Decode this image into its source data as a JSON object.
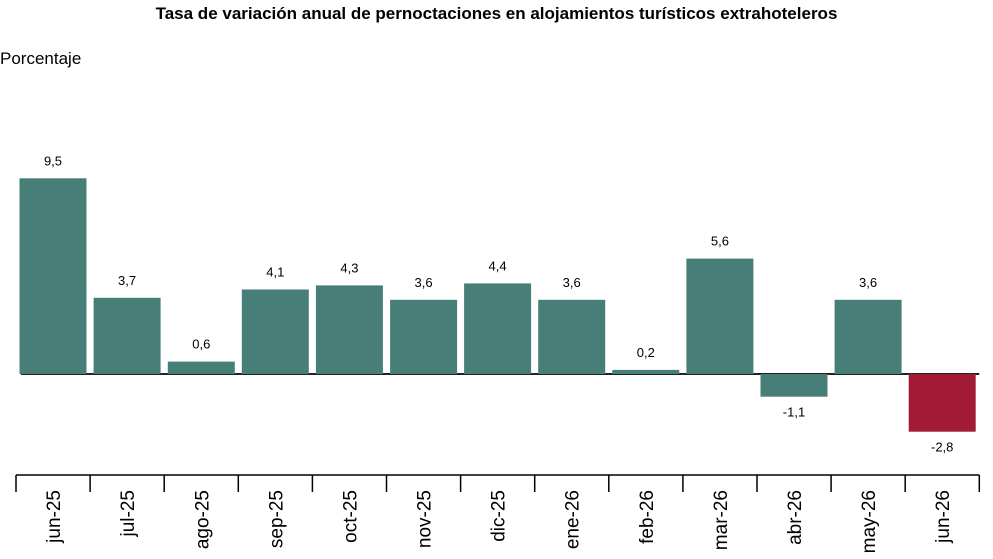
{
  "chart_data": {
    "type": "bar",
    "title": "Tasa de variación anual de pernoctaciones en alojamientos turísticos extrahoteleros",
    "ylabel": "Porcentaje",
    "categories": [
      "jun-25",
      "jul-25",
      "ago-25",
      "sep-25",
      "oct-25",
      "nov-25",
      "dic-25",
      "ene-26",
      "feb-26",
      "mar-26",
      "abr-26",
      "may-26",
      "jun-26"
    ],
    "values": [
      9.5,
      3.7,
      0.6,
      4.1,
      4.3,
      3.6,
      4.4,
      3.6,
      0.2,
      5.6,
      -1.1,
      3.6,
      -2.8
    ],
    "value_labels": [
      "9,5",
      "3,7",
      "0,6",
      "4,1",
      "4,3",
      "3,6",
      "4,4",
      "3,6",
      "0,2",
      "5,6",
      "-1,1",
      "3,6",
      "-2,8"
    ],
    "colors": {
      "default": "#477f78",
      "highlight": "#a01b33",
      "axis": "#222222"
    },
    "highlight_index": 12,
    "grid": false,
    "legend": "none"
  }
}
